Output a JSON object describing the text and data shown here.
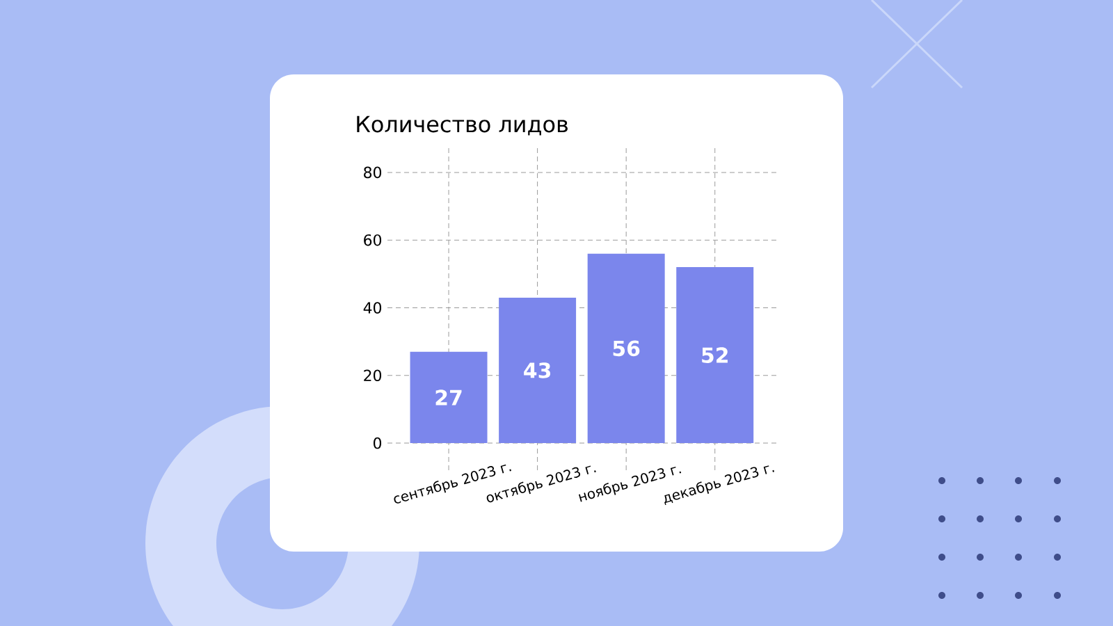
{
  "chart_data": {
    "type": "bar",
    "title": "Количество лидов",
    "categories": [
      "сентябрь 2023 г.",
      "октябрь 2023 г.",
      "ноябрь 2023 г.",
      "декабрь 2023 г."
    ],
    "values": [
      27,
      43,
      56,
      52
    ],
    "color": "#7b86ec",
    "ylim": [
      -8,
      88
    ],
    "yticks": [
      0,
      20,
      40,
      60,
      80
    ],
    "grid": true,
    "data_labels": true
  }
}
